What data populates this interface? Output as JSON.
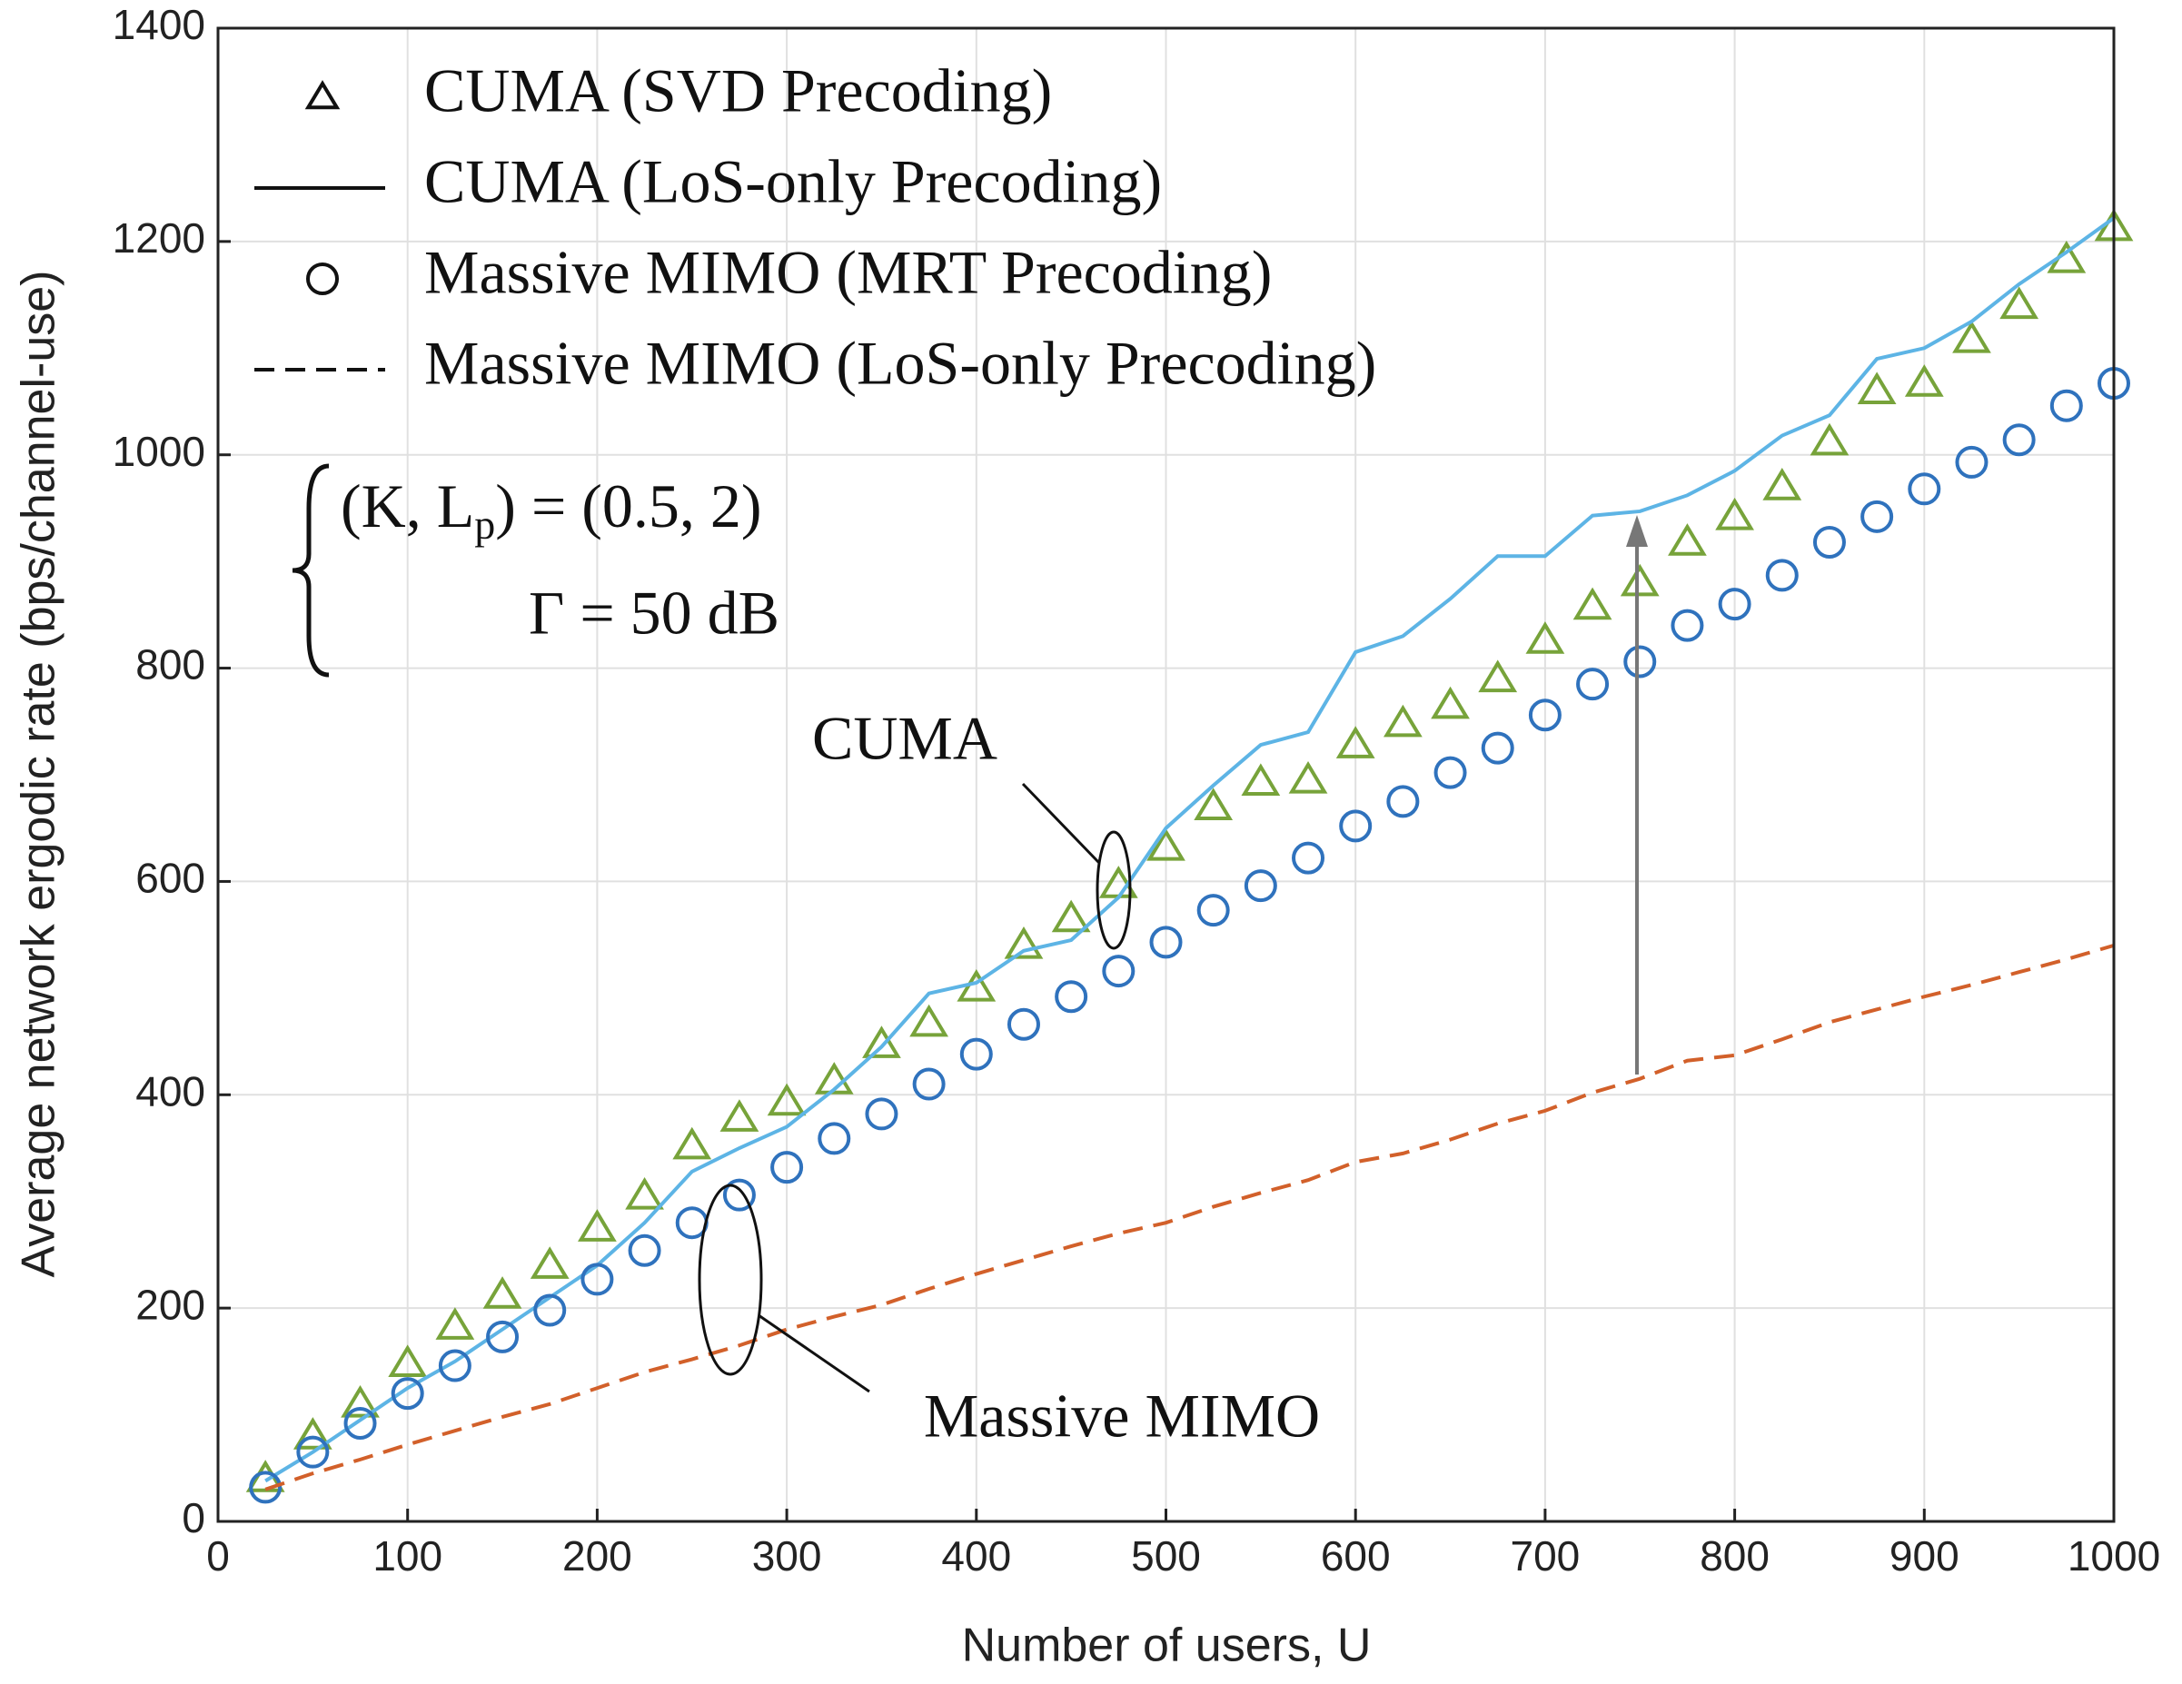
{
  "chart_data": {
    "type": "line",
    "xlabel": "Number of users, U",
    "ylabel": "Average network ergodic rate (bps/channel-use)",
    "x": [
      25,
      50,
      75,
      100,
      125,
      150,
      175,
      200,
      225,
      250,
      275,
      300,
      325,
      350,
      375,
      400,
      425,
      450,
      475,
      500,
      525,
      550,
      575,
      600,
      625,
      650,
      675,
      700,
      725,
      750,
      775,
      800,
      825,
      850,
      875,
      900,
      925,
      950,
      975,
      1000
    ],
    "series": [
      {
        "name": "CUMA (SVD Precoding)",
        "color": "#77a33a",
        "marker": "triangle",
        "line": "none",
        "values": [
          40,
          80,
          110,
          148,
          183,
          212,
          240,
          275,
          305,
          352,
          378,
          393,
          413,
          447,
          467,
          500,
          540,
          565,
          597,
          632,
          670,
          693,
          695,
          728,
          748,
          765,
          790,
          826,
          858,
          880,
          918,
          942,
          970,
          1012,
          1060,
          1067,
          1108,
          1140,
          1183,
          1213
        ]
      },
      {
        "name": "CUMA (LoS-only Precoding)",
        "color": "#5db4e5",
        "marker": "none",
        "line": "solid",
        "values": [
          38,
          65,
          95,
          125,
          150,
          180,
          210,
          240,
          280,
          328,
          350,
          370,
          405,
          445,
          495,
          505,
          535,
          545,
          585,
          650,
          690,
          728,
          740,
          815,
          830,
          865,
          905,
          905,
          943,
          947,
          962,
          985,
          1018,
          1037,
          1090,
          1100,
          1125,
          1160,
          1190,
          1222
        ]
      },
      {
        "name": "Massive MIMO (MRT Precoding)",
        "color": "#2f72bd",
        "marker": "circle",
        "line": "none",
        "values": [
          32,
          65,
          92,
          120,
          146,
          173,
          198,
          227,
          254,
          280,
          306,
          332,
          359,
          382,
          410,
          438,
          466,
          492,
          516,
          543,
          573,
          596,
          622,
          652,
          675,
          702,
          725,
          756,
          785,
          806,
          840,
          860,
          887,
          918,
          942,
          968,
          993,
          1014,
          1046,
          1067
        ]
      },
      {
        "name": "Massive MIMO (LoS-only Precoding)",
        "color": "#d2602a",
        "marker": "none",
        "line": "dashed",
        "values": [
          30,
          45,
          58,
          72,
          85,
          98,
          110,
          125,
          140,
          152,
          165,
          180,
          192,
          203,
          218,
          232,
          245,
          258,
          270,
          280,
          295,
          308,
          320,
          337,
          345,
          358,
          373,
          385,
          402,
          415,
          432,
          437,
          452,
          468,
          480,
          492,
          503,
          515,
          527,
          540
        ]
      }
    ],
    "xlim": [
      0,
      1000
    ],
    "xticks": [
      0,
      100,
      200,
      300,
      400,
      500,
      600,
      700,
      800,
      900,
      1000
    ],
    "ylim": [
      0,
      1400
    ],
    "yticks": [
      0,
      200,
      400,
      600,
      800,
      1000,
      1200,
      1400
    ],
    "grid": true,
    "legend": "upper left",
    "annotations": [
      "CUMA",
      "Massive MIMO"
    ],
    "equation": [
      [
        "(K, L",
        "p",
        ") = (0.5, 2)"
      ],
      [
        "Γ = 50 dB"
      ]
    ]
  }
}
